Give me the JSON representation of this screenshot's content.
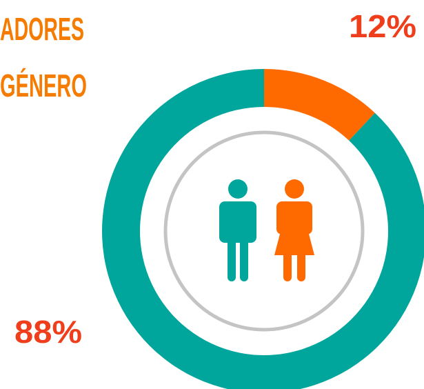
{
  "chart_data": {
    "type": "donut",
    "title_lines": [
      "ADORES",
      "GÉNERO"
    ],
    "values": [
      12,
      88
    ],
    "value_labels": [
      "12%",
      "88%"
    ],
    "colors": [
      "#ff6a00",
      "#00a69c"
    ]
  }
}
